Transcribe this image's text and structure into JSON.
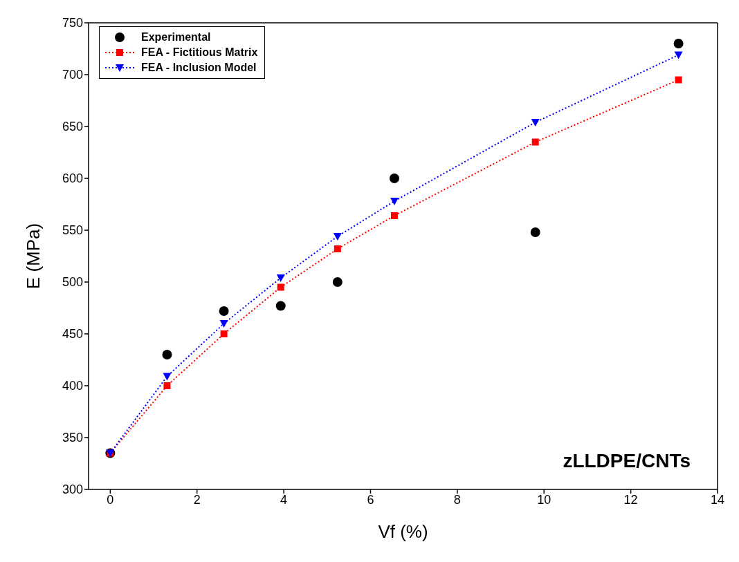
{
  "chart_data": {
    "type": "scatter",
    "xlabel": "Vf (%)",
    "ylabel": "E (MPa)",
    "xlim": [
      -0.5,
      14
    ],
    "xticks": [
      0,
      2,
      4,
      6,
      8,
      10,
      12,
      14
    ],
    "ylim": [
      300,
      750
    ],
    "yticks": [
      300,
      350,
      400,
      450,
      500,
      550,
      600,
      650,
      700,
      750
    ],
    "legend": "top left",
    "annotations": [
      "zLLDPE/CNTs"
    ],
    "series": [
      {
        "name": "Experimental",
        "marker": "circle",
        "color": "#000000",
        "x": [
          0,
          1.31,
          2.62,
          3.93,
          5.24,
          6.55,
          9.8,
          13.1
        ],
        "values": [
          335,
          430,
          472,
          477,
          500,
          600,
          548,
          730
        ]
      },
      {
        "name": "FEA - Fictitious Matrix",
        "type": "line",
        "marker": "square",
        "line_style": "dotted",
        "color": "#ff0000",
        "x": [
          0,
          1.31,
          2.62,
          3.93,
          5.24,
          6.55,
          9.8,
          13.1
        ],
        "values": [
          335,
          400,
          450,
          495,
          532,
          564,
          635,
          695
        ]
      },
      {
        "name": "FEA - Inclusion Model",
        "type": "line",
        "marker": "triangle",
        "line_style": "dotted",
        "color": "#0000ff",
        "x": [
          0,
          1.31,
          2.62,
          3.93,
          5.24,
          6.55,
          9.8,
          13.1
        ],
        "values": [
          335,
          409,
          460,
          504,
          544,
          578,
          654,
          719
        ]
      }
    ]
  }
}
